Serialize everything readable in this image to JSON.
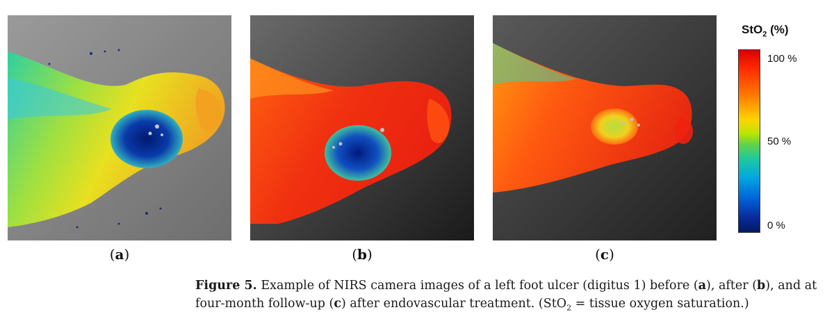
{
  "colorbar": {
    "title_main": "StO",
    "title_sub": "2",
    "title_unit": " (%)",
    "ticks": [
      "100 %",
      "50 %",
      "0 %"
    ]
  },
  "panels": [
    {
      "open": "(",
      "letter": "a",
      "close": ")",
      "description": "NIRS image, before treatment: mostly green-yellow tissue with dark blue ulcer region"
    },
    {
      "open": "(",
      "letter": "b",
      "close": ")",
      "description": "NIRS image, after treatment: mostly red-orange tissue with blue ulcer region"
    },
    {
      "open": "(",
      "letter": "c",
      "close": ")",
      "description": "NIRS image, four-month follow-up: mostly red tissue with small yellow-green healed ulcer region"
    }
  ],
  "caption": {
    "label": "Figure 5.",
    "t1": " Example of NIRS camera images of a left foot ulcer (digitus 1) before (",
    "a": "a",
    "t2": "), after (",
    "b": "b",
    "t3": "), and at four-month follow-up (",
    "c": "c",
    "t4": ") after endovascular treatment. (StO",
    "sub": "2",
    "t5": " = tissue oxygen saturation.)"
  }
}
